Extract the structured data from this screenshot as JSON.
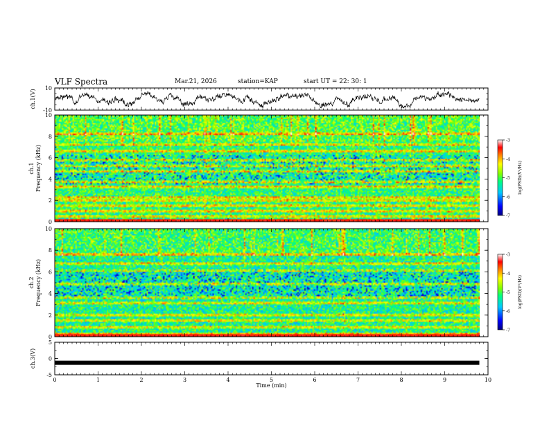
{
  "header": {
    "title": "VLF Spectra",
    "date": "Mar.21, 2026",
    "station": "station=KAP",
    "start": "start  UT  =   22: 30: 1"
  },
  "chart_data": [
    {
      "id": "ch1-waveform",
      "type": "line",
      "ylabel": "ch.1(V)",
      "ylim": [
        -10,
        10
      ],
      "yticks": [
        "10",
        "-10"
      ],
      "xlim": [
        0,
        10
      ],
      "x_end": 9.8,
      "series": [
        {
          "name": "ch.1",
          "baseline": 0.0,
          "amplitude_range": [
            -8,
            8
          ]
        }
      ]
    },
    {
      "id": "ch1-spectrogram",
      "type": "heatmap",
      "ylabel_line1": "ch.1",
      "ylabel_line2": "Frequency (kHz)",
      "ylim": [
        0,
        10
      ],
      "yticks": [
        "0",
        "2",
        "4",
        "6",
        "8",
        "10"
      ],
      "xlim": [
        0,
        10
      ],
      "x_end": 9.8,
      "colorbar": {
        "label": "log(PSD)(V²/Hz)",
        "min": -7,
        "max": -3,
        "ticks": [
          "-3",
          "-4",
          "-5",
          "-6",
          "-7"
        ]
      },
      "bands_khz": [
        0.5,
        1.0,
        1.5,
        2.0,
        2.3,
        3.3,
        3.7,
        4.7,
        5.2,
        5.8,
        6.6,
        7.2,
        8.2
      ],
      "typical_log_psd": -5.2
    },
    {
      "id": "ch2-spectrogram",
      "type": "heatmap",
      "ylabel_line1": "ch.2",
      "ylabel_line2": "Frequency (kHz)",
      "ylim": [
        0,
        10
      ],
      "yticks": [
        "0",
        "2",
        "4",
        "6",
        "8",
        "10"
      ],
      "xlim": [
        0,
        10
      ],
      "x_end": 9.8,
      "colorbar": {
        "label": "log(PSD)(V²/Hz)",
        "min": -7,
        "max": -3,
        "ticks": [
          "-3",
          "-4",
          "-5",
          "-6",
          "-7"
        ]
      },
      "bands_khz": [
        0.3,
        0.9,
        1.5,
        2.0,
        3.1,
        3.6,
        4.9,
        6.1,
        6.8,
        7.6
      ],
      "typical_log_psd": -5.3
    },
    {
      "id": "ch3-waveform",
      "type": "line",
      "ylabel": "ch.3(V)",
      "ylim": [
        -5,
        5
      ],
      "yticks": [
        "5",
        "0",
        "-5"
      ],
      "xlim": [
        0,
        10
      ],
      "x_end": 9.8,
      "xlabel": "Time (min)",
      "xticks": [
        "0",
        "1",
        "2",
        "3",
        "4",
        "5",
        "6",
        "7",
        "8",
        "9",
        "10"
      ],
      "series": [
        {
          "name": "ch.3",
          "level": -1.3
        }
      ]
    }
  ]
}
